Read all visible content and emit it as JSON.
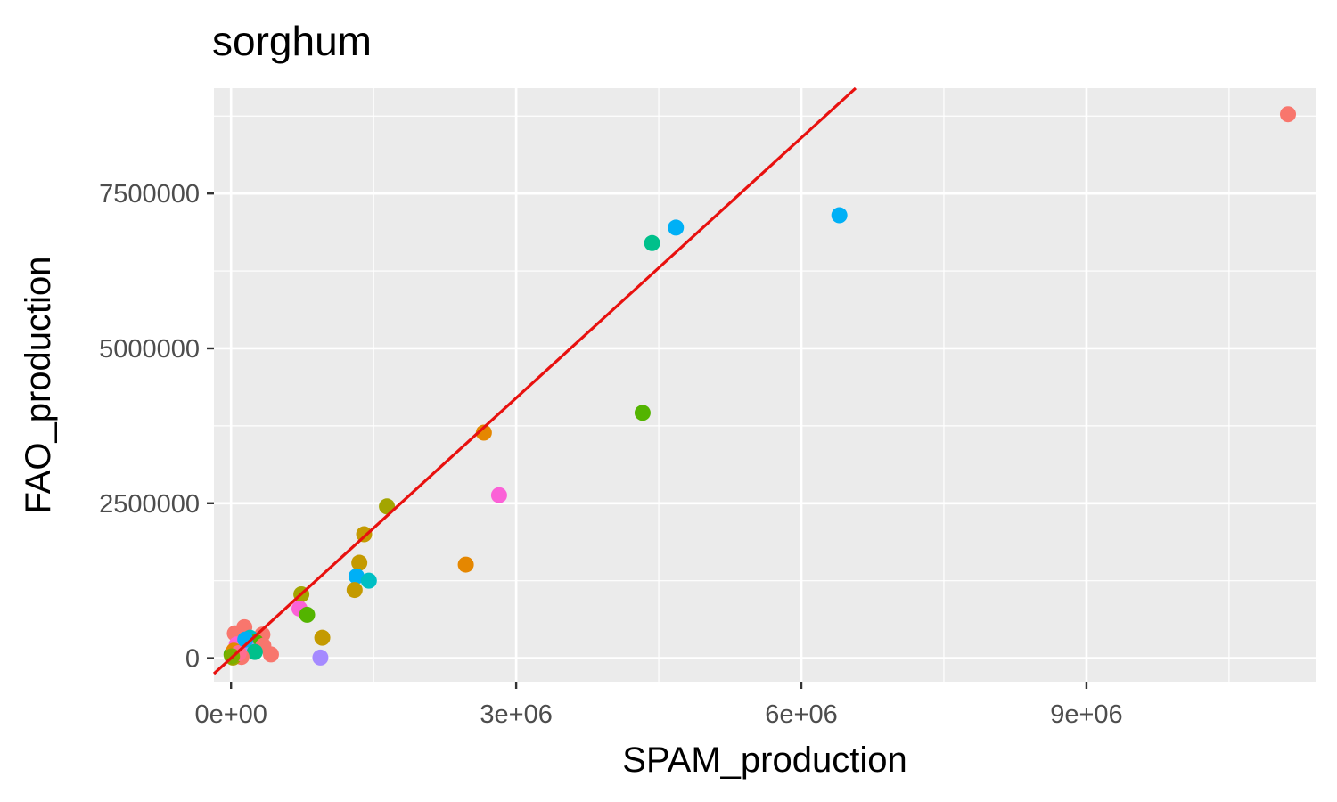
{
  "chart_data": {
    "type": "scatter",
    "title": "sorghum",
    "xlabel": "SPAM_production",
    "ylabel": "FAO_production",
    "xlim": [
      -180000,
      11420000
    ],
    "ylim": [
      -380000,
      9200000
    ],
    "x_ticks": [
      0,
      3000000,
      6000000,
      9000000
    ],
    "x_tick_labels": [
      "0e+00",
      "3e+06",
      "6e+06",
      "9e+06"
    ],
    "y_ticks": [
      0,
      2500000,
      5000000,
      7500000
    ],
    "y_tick_labels": [
      "0",
      "2500000",
      "5000000",
      "7500000"
    ],
    "grid": true,
    "legend": "none",
    "reference_line": {
      "slope": 1.4,
      "intercept": 0,
      "color": "#e8110f"
    },
    "points": [
      {
        "x": 11120000,
        "y": 8780000,
        "color": "#f8766d"
      },
      {
        "x": 6400000,
        "y": 7150000,
        "color": "#00b0f6"
      },
      {
        "x": 4680000,
        "y": 6950000,
        "color": "#00b0f6"
      },
      {
        "x": 4430000,
        "y": 6700000,
        "color": "#00c08b"
      },
      {
        "x": 4330000,
        "y": 3960000,
        "color": "#53b400"
      },
      {
        "x": 2660000,
        "y": 3640000,
        "color": "#e58700"
      },
      {
        "x": 2820000,
        "y": 2630000,
        "color": "#fb61d7"
      },
      {
        "x": 1640000,
        "y": 2450000,
        "color": "#a3a500"
      },
      {
        "x": 1400000,
        "y": 2000000,
        "color": "#c49a00"
      },
      {
        "x": 2470000,
        "y": 1510000,
        "color": "#e58700"
      },
      {
        "x": 1350000,
        "y": 1540000,
        "color": "#c49a00"
      },
      {
        "x": 1320000,
        "y": 1320000,
        "color": "#00b0f6"
      },
      {
        "x": 1450000,
        "y": 1250000,
        "color": "#00bfc4"
      },
      {
        "x": 1300000,
        "y": 1100000,
        "color": "#c49a00"
      },
      {
        "x": 740000,
        "y": 1030000,
        "color": "#a3a500"
      },
      {
        "x": 720000,
        "y": 800000,
        "color": "#fb61d7"
      },
      {
        "x": 800000,
        "y": 700000,
        "color": "#53b400"
      },
      {
        "x": 960000,
        "y": 330000,
        "color": "#c49a00"
      },
      {
        "x": 940000,
        "y": 10000,
        "color": "#a58aff"
      },
      {
        "x": 140000,
        "y": 500000,
        "color": "#f8766d"
      },
      {
        "x": 40000,
        "y": 400000,
        "color": "#f8766d"
      },
      {
        "x": 330000,
        "y": 380000,
        "color": "#f8766d"
      },
      {
        "x": 200000,
        "y": 330000,
        "color": "#00bfc4"
      },
      {
        "x": 260000,
        "y": 260000,
        "color": "#53b400"
      },
      {
        "x": 60000,
        "y": 220000,
        "color": "#fb61d7"
      },
      {
        "x": 340000,
        "y": 200000,
        "color": "#f8766d"
      },
      {
        "x": 180000,
        "y": 150000,
        "color": "#a58aff"
      },
      {
        "x": 250000,
        "y": 100000,
        "color": "#00c08b"
      },
      {
        "x": 420000,
        "y": 60000,
        "color": "#f8766d"
      },
      {
        "x": 110000,
        "y": 20000,
        "color": "#f8766d"
      },
      {
        "x": 20000,
        "y": 10000,
        "color": "#a3a500"
      },
      {
        "x": 5000,
        "y": 60000,
        "color": "#53b400"
      },
      {
        "x": 30000,
        "y": 120000,
        "color": "#e58700"
      },
      {
        "x": 80000,
        "y": 80000,
        "color": "#ff6c91"
      },
      {
        "x": 150000,
        "y": 300000,
        "color": "#00b0f6"
      },
      {
        "x": 10000,
        "y": 30000,
        "color": "#7cae00"
      }
    ]
  }
}
